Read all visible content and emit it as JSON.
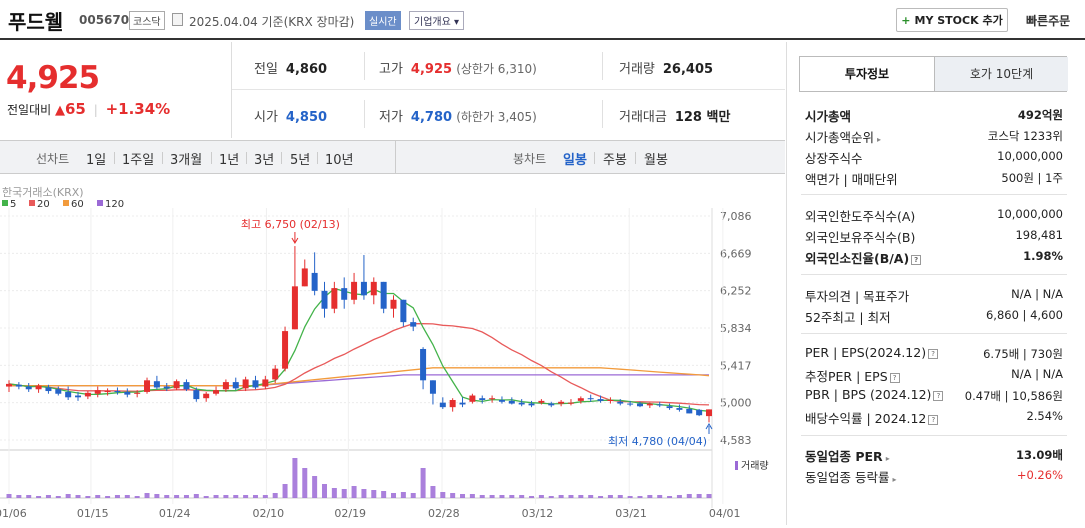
{
  "header": {
    "name": "푸드웰",
    "code": "005670",
    "market": "코스닥",
    "date_text": "2025.04.04  기준(KRX 장마감)",
    "live_badge": "실시간",
    "corp_overview": "기업개요 ▾",
    "mystock_label": "MY STOCK 추가",
    "quick_order": "빠른주문"
  },
  "price": {
    "current": "4,925",
    "change_label": "전일대비",
    "change": "65",
    "change_pct": "+1.34%"
  },
  "stats": {
    "prev_label": "전일",
    "prev": "4,860",
    "high_label": "고가",
    "high": "4,925",
    "upper_limit": "(상한가 6,310)",
    "volume_label": "거래량",
    "volume": "26,405",
    "open_label": "시가",
    "open": "4,850",
    "low_label": "저가",
    "low": "4,780",
    "lower_limit": "(하한가 3,405)",
    "amount_label": "거래대금",
    "amount": "128 백만"
  },
  "controls": {
    "line_chart_label": "선차트",
    "periods": [
      "1일",
      "1주일",
      "3개월",
      "1년",
      "3년",
      "5년",
      "10년"
    ],
    "candle_chart_label": "봉차트",
    "candle_periods": [
      "일봉",
      "주봉",
      "월봉"
    ],
    "active_candle": "일봉"
  },
  "side": {
    "tab_info": "투자정보",
    "tab_quote": "호가 10단계",
    "rows": {
      "mcap_label": "시가총액",
      "mcap": "492억원",
      "mcap_rank_label": "시가총액순위",
      "mcap_rank": "코스닥 1233위",
      "shares_label": "상장주식수",
      "shares": "10,000,000",
      "par_label": "액면가 | 매매단위",
      "par": "500원 | 1주",
      "foreign_limit_label": "외국인한도주식수(A)",
      "foreign_limit": "10,000,000",
      "foreign_hold_label": "외국인보유주식수(B)",
      "foreign_hold": "198,481",
      "foreign_ratio_label": "외국인소진율(B/A)",
      "foreign_ratio": "1.98%",
      "opinion_label": "투자의견 | 목표주가",
      "opinion": "N/A | N/A",
      "w52_label": "52주최고 | 최저",
      "w52": "6,860 | 4,600",
      "per_label": "PER | EPS(2024.12)",
      "per": "6.75배 | 730원",
      "est_per_label": "추정PER | EPS",
      "est_per": "N/A | N/A",
      "pbr_label": "PBR | BPS (2024.12)",
      "pbr": "0.47배 | 10,586원",
      "div_label": "배당수익률 | 2024.12",
      "div": "2.54%",
      "ind_per_label": "동일업종 PER",
      "ind_per": "13.09배",
      "ind_chg_label": "동일업종 등락률",
      "ind_chg": "+0.26%"
    }
  },
  "chart_data": {
    "type": "candlestick",
    "source_label": "한국거래소(KRX)",
    "legend": [
      {
        "name": "5",
        "color": "#43b34a"
      },
      {
        "name": "20",
        "color": "#e85a5a"
      },
      {
        "name": "60",
        "color": "#f29b3c"
      },
      {
        "name": "120",
        "color": "#9b6ad6"
      }
    ],
    "y_ticks": [
      "7,086",
      "6,669",
      "6,252",
      "5,834",
      "5,417",
      "5,000",
      "4,583"
    ],
    "ylim": [
      4583,
      7086
    ],
    "x_ticks": [
      "01/06",
      "01/15",
      "01/24",
      "02/10",
      "02/19",
      "02/28",
      "03/12",
      "03/21",
      "04/01"
    ],
    "high_annotation": "최고 6,750 (02/13)",
    "low_annotation": "최저 4,780 (04/04)",
    "volume_label": "거래량",
    "candles": [
      [
        5180,
        5250,
        5120,
        5210
      ],
      [
        5200,
        5230,
        5150,
        5180
      ],
      [
        5180,
        5220,
        5120,
        5150
      ],
      [
        5150,
        5210,
        5110,
        5190
      ],
      [
        5170,
        5200,
        5100,
        5130
      ],
      [
        5150,
        5180,
        5080,
        5100
      ],
      [
        5120,
        5180,
        5030,
        5060
      ],
      [
        5080,
        5120,
        5020,
        5060
      ],
      [
        5070,
        5130,
        5040,
        5110
      ],
      [
        5100,
        5180,
        5060,
        5140
      ],
      [
        5120,
        5160,
        5080,
        5130
      ],
      [
        5130,
        5170,
        5090,
        5120
      ],
      [
        5120,
        5160,
        5060,
        5090
      ],
      [
        5100,
        5140,
        5060,
        5110
      ],
      [
        5120,
        5280,
        5100,
        5250
      ],
      [
        5240,
        5300,
        5150,
        5170
      ],
      [
        5180,
        5220,
        5130,
        5160
      ],
      [
        5160,
        5260,
        5140,
        5240
      ],
      [
        5230,
        5260,
        5130,
        5150
      ],
      [
        5140,
        5170,
        5010,
        5040
      ],
      [
        5050,
        5120,
        5010,
        5100
      ],
      [
        5100,
        5180,
        5080,
        5140
      ],
      [
        5150,
        5260,
        5120,
        5230
      ],
      [
        5230,
        5280,
        5140,
        5160
      ],
      [
        5160,
        5290,
        5130,
        5260
      ],
      [
        5250,
        5300,
        5150,
        5170
      ],
      [
        5180,
        5300,
        5150,
        5260
      ],
      [
        5260,
        5420,
        5220,
        5380
      ],
      [
        5380,
        5850,
        5350,
        5800
      ],
      [
        5820,
        6750,
        5820,
        6300
      ],
      [
        6300,
        6600,
        6300,
        6500
      ],
      [
        6450,
        6680,
        6200,
        6250
      ],
      [
        6250,
        6350,
        5950,
        6050
      ],
      [
        6050,
        6350,
        6000,
        6280
      ],
      [
        6280,
        6400,
        6050,
        6150
      ],
      [
        6150,
        6450,
        6100,
        6350
      ],
      [
        6350,
        6650,
        6150,
        6200
      ],
      [
        6200,
        6400,
        6100,
        6350
      ],
      [
        6350,
        6350,
        6000,
        6050
      ],
      [
        6050,
        6200,
        5950,
        6150
      ],
      [
        6150,
        6150,
        5850,
        5900
      ],
      [
        5900,
        5950,
        5800,
        5850
      ],
      [
        5600,
        5620,
        5150,
        5250
      ],
      [
        5250,
        5250,
        4980,
        5100
      ],
      [
        5000,
        5060,
        4930,
        4950
      ],
      [
        4950,
        5050,
        4900,
        5030
      ],
      [
        5000,
        5060,
        4950,
        4980
      ],
      [
        5010,
        5100,
        4990,
        5080
      ],
      [
        5050,
        5080,
        4990,
        5030
      ],
      [
        5040,
        5080,
        5000,
        5050
      ],
      [
        5030,
        5070,
        4990,
        5010
      ],
      [
        5020,
        5060,
        4980,
        4990
      ],
      [
        5000,
        5040,
        4960,
        4980
      ],
      [
        4990,
        5020,
        4950,
        4970
      ],
      [
        5000,
        5040,
        4980,
        5020
      ],
      [
        4990,
        5010,
        4950,
        4970
      ],
      [
        4990,
        5030,
        4960,
        5010
      ],
      [
        5000,
        5040,
        4970,
        5000
      ],
      [
        5020,
        5070,
        4990,
        5050
      ],
      [
        5050,
        5090,
        5010,
        5040
      ],
      [
        5040,
        5080,
        5000,
        5020
      ],
      [
        5020,
        5060,
        4990,
        5030
      ],
      [
        5010,
        5040,
        4970,
        4990
      ],
      [
        4990,
        5020,
        4960,
        4980
      ],
      [
        4990,
        5010,
        4950,
        4960
      ],
      [
        4970,
        5000,
        4940,
        4990
      ],
      [
        4980,
        5010,
        4950,
        4970
      ],
      [
        4960,
        4990,
        4920,
        4940
      ],
      [
        4940,
        4980,
        4900,
        4920
      ],
      [
        4930,
        4970,
        4880,
        4880
      ],
      [
        4920,
        4930,
        4850,
        4860
      ],
      [
        4850,
        4925,
        4780,
        4925
      ]
    ],
    "volumes": [
      4,
      3,
      3,
      2,
      3,
      2,
      4,
      3,
      2,
      3,
      2,
      3,
      3,
      2,
      5,
      4,
      3,
      3,
      3,
      4,
      2,
      3,
      3,
      3,
      3,
      3,
      3,
      5,
      14,
      40,
      30,
      22,
      14,
      10,
      9,
      12,
      9,
      8,
      7,
      5,
      6,
      5,
      30,
      12,
      6,
      5,
      4,
      4,
      3,
      3,
      3,
      3,
      3,
      2,
      3,
      2,
      3,
      3,
      3,
      3,
      2,
      3,
      3,
      2,
      2,
      3,
      3,
      2,
      3,
      4,
      4,
      4
    ]
  }
}
